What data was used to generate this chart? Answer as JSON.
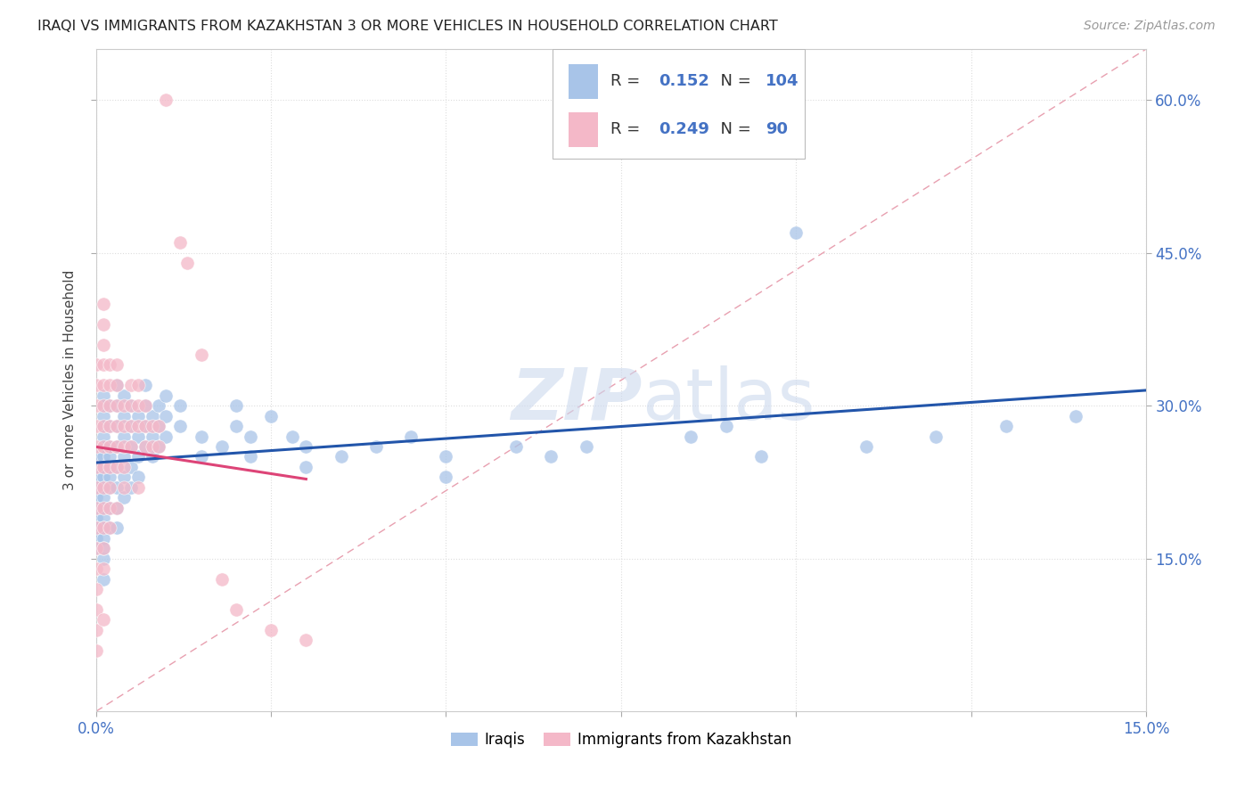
{
  "title": "IRAQI VS IMMIGRANTS FROM KAZAKHSTAN 3 OR MORE VEHICLES IN HOUSEHOLD CORRELATION CHART",
  "source": "Source: ZipAtlas.com",
  "ylabel": "3 or more Vehicles in Household",
  "ytick_vals": [
    0.15,
    0.3,
    0.45,
    0.6
  ],
  "xlim": [
    0.0,
    0.15
  ],
  "ylim": [
    0.0,
    0.65
  ],
  "legend_iraqis_R": "0.152",
  "legend_iraqis_N": "104",
  "legend_kazakh_R": "0.249",
  "legend_kazakh_N": "90",
  "iraqis_color": "#a8c4e8",
  "kazakh_color": "#f4b8c8",
  "trendline_iraqis_color": "#2255aa",
  "trendline_kazakh_color": "#dd4477",
  "diagonal_color": "#e8a0b0",
  "watermark_color": "#ccd9ee",
  "iraqis_label": "Iraqis",
  "kazakh_label": "Immigrants from Kazakhstan",
  "iraqis_x": [
    0.0,
    0.0,
    0.0,
    0.0,
    0.0,
    0.0,
    0.0,
    0.0,
    0.0,
    0.0,
    0.001,
    0.001,
    0.001,
    0.001,
    0.001,
    0.001,
    0.001,
    0.001,
    0.001,
    0.001,
    0.001,
    0.001,
    0.001,
    0.001,
    0.001,
    0.001,
    0.001,
    0.001,
    0.002,
    0.002,
    0.002,
    0.002,
    0.002,
    0.002,
    0.002,
    0.002,
    0.002,
    0.003,
    0.003,
    0.003,
    0.003,
    0.003,
    0.003,
    0.003,
    0.003,
    0.004,
    0.004,
    0.004,
    0.004,
    0.004,
    0.004,
    0.005,
    0.005,
    0.005,
    0.005,
    0.005,
    0.006,
    0.006,
    0.006,
    0.006,
    0.007,
    0.007,
    0.007,
    0.007,
    0.008,
    0.008,
    0.008,
    0.009,
    0.009,
    0.009,
    0.01,
    0.01,
    0.01,
    0.012,
    0.012,
    0.015,
    0.015,
    0.018,
    0.02,
    0.02,
    0.022,
    0.022,
    0.025,
    0.028,
    0.03,
    0.03,
    0.035,
    0.04,
    0.045,
    0.05,
    0.05,
    0.06,
    0.065,
    0.07,
    0.085,
    0.09,
    0.095,
    0.1,
    0.11,
    0.12,
    0.13,
    0.14
  ],
  "iraqis_y": [
    0.2,
    0.22,
    0.24,
    0.25,
    0.23,
    0.21,
    0.19,
    0.18,
    0.17,
    0.16,
    0.2,
    0.22,
    0.24,
    0.26,
    0.28,
    0.3,
    0.23,
    0.21,
    0.19,
    0.25,
    0.27,
    0.18,
    0.15,
    0.13,
    0.17,
    0.29,
    0.31,
    0.16,
    0.24,
    0.26,
    0.22,
    0.28,
    0.2,
    0.3,
    0.18,
    0.23,
    0.25,
    0.26,
    0.28,
    0.22,
    0.24,
    0.2,
    0.3,
    0.18,
    0.32,
    0.27,
    0.25,
    0.23,
    0.29,
    0.21,
    0.31,
    0.26,
    0.28,
    0.24,
    0.22,
    0.3,
    0.25,
    0.27,
    0.23,
    0.29,
    0.28,
    0.3,
    0.26,
    0.32,
    0.27,
    0.25,
    0.29,
    0.28,
    0.26,
    0.3,
    0.29,
    0.27,
    0.31,
    0.3,
    0.28,
    0.27,
    0.25,
    0.26,
    0.28,
    0.3,
    0.27,
    0.25,
    0.29,
    0.27,
    0.26,
    0.24,
    0.25,
    0.26,
    0.27,
    0.25,
    0.23,
    0.26,
    0.25,
    0.26,
    0.27,
    0.28,
    0.25,
    0.47,
    0.26,
    0.27,
    0.28,
    0.29
  ],
  "kazakh_x": [
    0.0,
    0.0,
    0.0,
    0.0,
    0.0,
    0.0,
    0.0,
    0.0,
    0.0,
    0.0,
    0.0,
    0.0,
    0.0,
    0.0,
    0.0,
    0.001,
    0.001,
    0.001,
    0.001,
    0.001,
    0.001,
    0.001,
    0.001,
    0.001,
    0.001,
    0.001,
    0.001,
    0.001,
    0.001,
    0.001,
    0.002,
    0.002,
    0.002,
    0.002,
    0.002,
    0.002,
    0.002,
    0.002,
    0.002,
    0.003,
    0.003,
    0.003,
    0.003,
    0.003,
    0.003,
    0.003,
    0.004,
    0.004,
    0.004,
    0.004,
    0.004,
    0.005,
    0.005,
    0.005,
    0.005,
    0.006,
    0.006,
    0.006,
    0.006,
    0.007,
    0.007,
    0.007,
    0.008,
    0.008,
    0.009,
    0.009,
    0.01,
    0.012,
    0.013,
    0.015,
    0.018,
    0.02,
    0.025,
    0.03
  ],
  "kazakh_y": [
    0.22,
    0.24,
    0.26,
    0.28,
    0.3,
    0.32,
    0.34,
    0.2,
    0.18,
    0.16,
    0.14,
    0.12,
    0.1,
    0.08,
    0.06,
    0.2,
    0.22,
    0.24,
    0.26,
    0.28,
    0.3,
    0.32,
    0.34,
    0.36,
    0.38,
    0.4,
    0.18,
    0.16,
    0.14,
    0.09,
    0.22,
    0.24,
    0.26,
    0.28,
    0.3,
    0.32,
    0.34,
    0.18,
    0.2,
    0.24,
    0.26,
    0.28,
    0.3,
    0.32,
    0.34,
    0.2,
    0.22,
    0.24,
    0.26,
    0.28,
    0.3,
    0.26,
    0.28,
    0.3,
    0.32,
    0.28,
    0.3,
    0.32,
    0.22,
    0.26,
    0.28,
    0.3,
    0.26,
    0.28,
    0.26,
    0.28,
    0.6,
    0.46,
    0.44,
    0.35,
    0.13,
    0.1,
    0.08,
    0.07
  ]
}
